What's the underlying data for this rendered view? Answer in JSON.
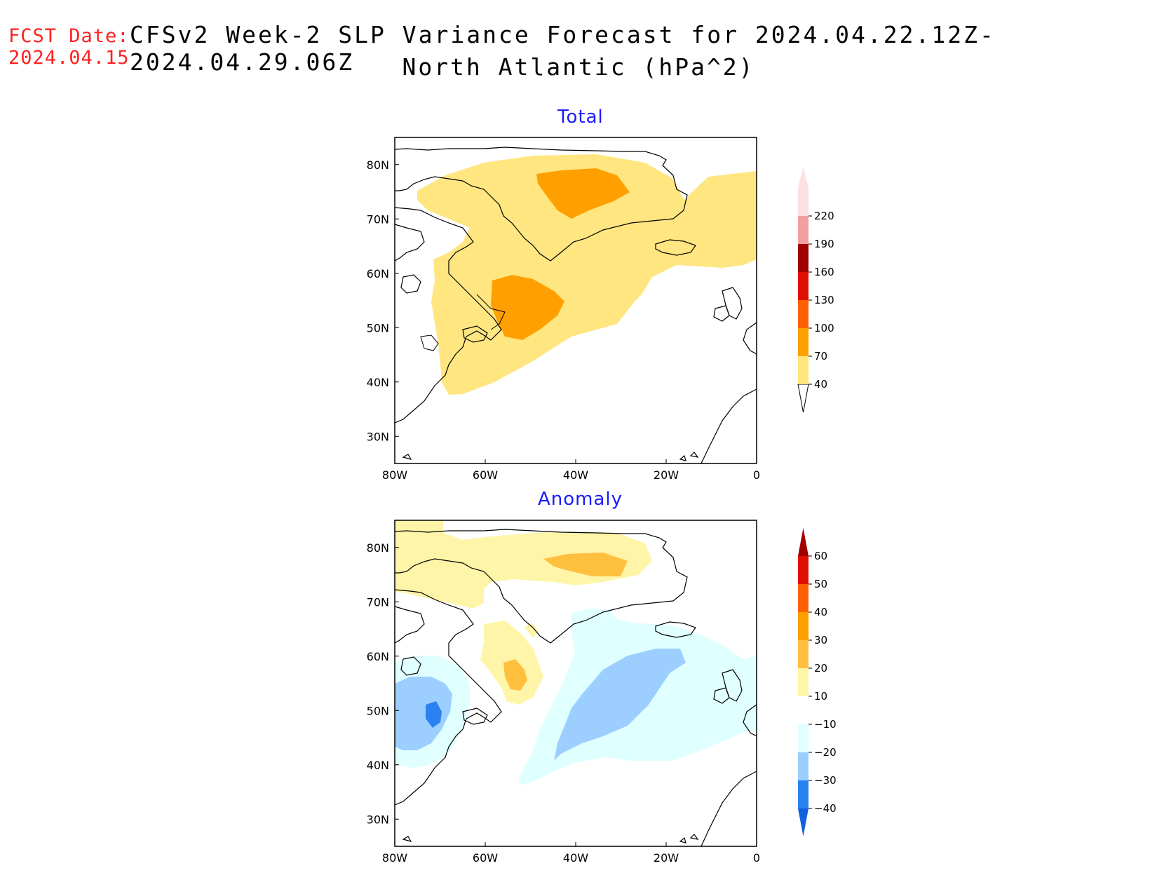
{
  "header": {
    "fcst_label": "FCST Date:",
    "fcst_date": "2024.04.15",
    "title_line1": "CFSv2 Week-2 SLP Variance Forecast for 2024.04.22.12Z-2024.04.29.06Z",
    "title_line2": "North Atlantic (hPa^2)"
  },
  "panels": [
    {
      "title": "Total",
      "lat_labels": [
        "80N",
        "70N",
        "60N",
        "50N",
        "40N",
        "30N"
      ],
      "lon_labels": [
        "80W",
        "60W",
        "40W",
        "20W",
        "0"
      ],
      "colorbar": {
        "levels": [
          "40",
          "70",
          "100",
          "130",
          "160",
          "190",
          "220"
        ],
        "colors": [
          "#ffe680",
          "#ffa000",
          "#ff6000",
          "#e01000",
          "#a00000",
          "#f0a0a0",
          "#fde0e0"
        ]
      }
    },
    {
      "title": "Anomaly",
      "lat_labels": [
        "80N",
        "70N",
        "60N",
        "50N",
        "40N",
        "30N"
      ],
      "lon_labels": [
        "80W",
        "60W",
        "40W",
        "20W",
        "0"
      ],
      "colorbar": {
        "levels": [
          "60",
          "50",
          "40",
          "30",
          "20",
          "10",
          "−10",
          "−20",
          "−30",
          "−40"
        ],
        "colors": [
          "#a00000",
          "#e01000",
          "#ff6000",
          "#ffa000",
          "#ffc040",
          "#fff5a8",
          "#ffffff",
          "#e0ffff",
          "#9ccfff",
          "#2a82f0",
          "#1060e0"
        ]
      }
    }
  ]
}
